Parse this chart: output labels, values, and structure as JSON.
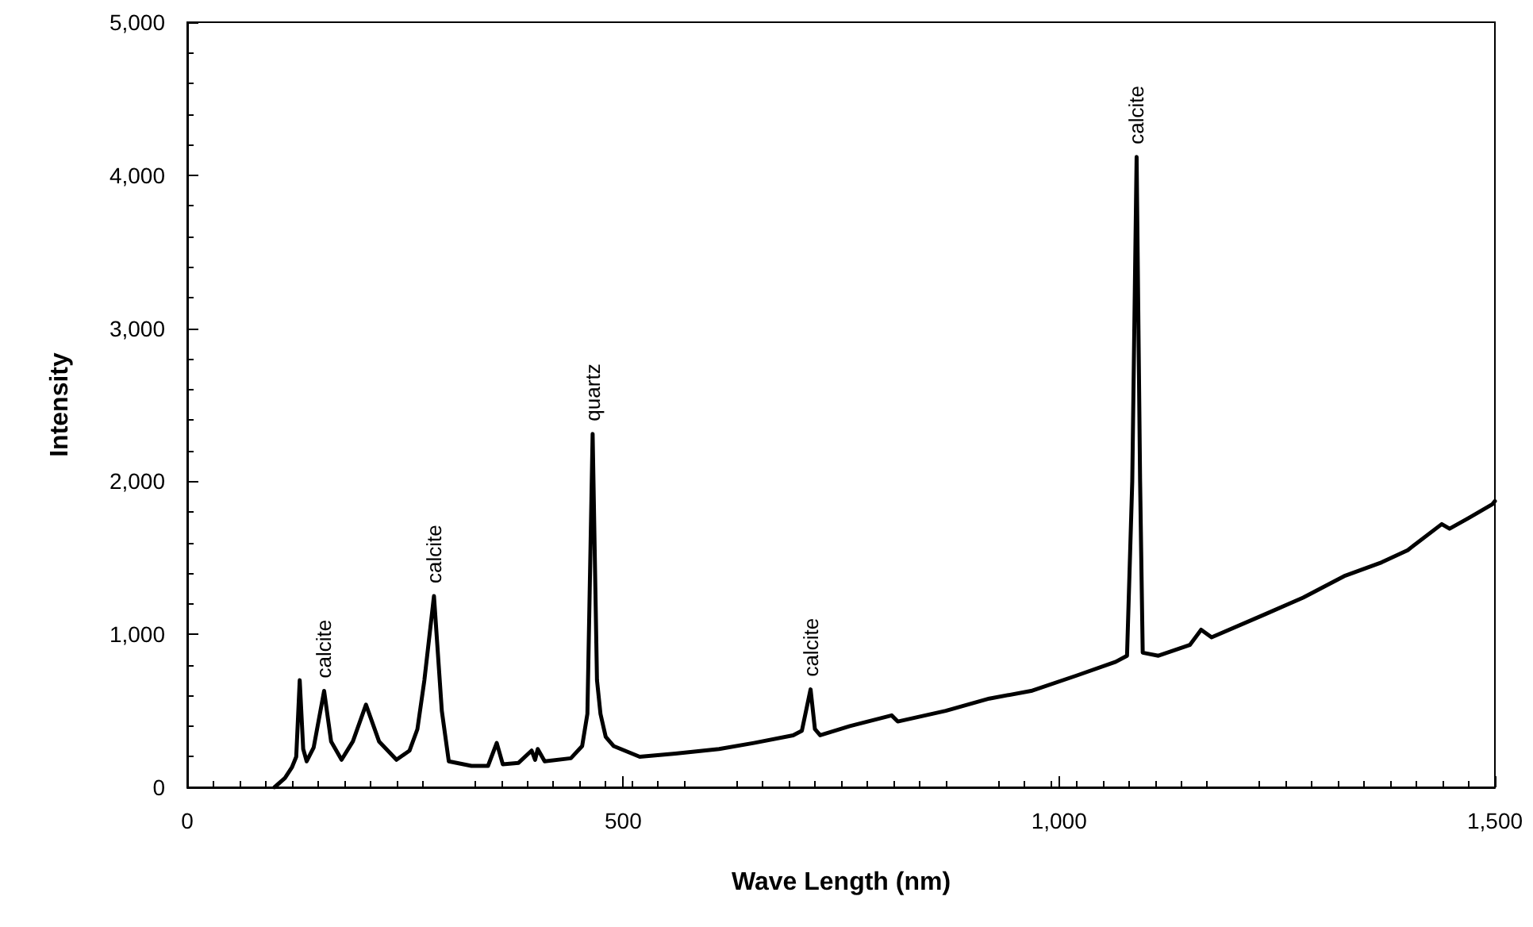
{
  "chart_data": {
    "type": "line",
    "xlabel": "Wave Length (nm)",
    "ylabel": "Intensity",
    "xlim": [
      0,
      1500
    ],
    "xticks": [
      0,
      500,
      {
        "value": 1000,
        "label": "1,000"
      },
      {
        "value": 1500,
        "label": "1,500"
      }
    ],
    "ylim": [
      0,
      5000
    ],
    "yticks": [
      0,
      {
        "value": 1000,
        "label": "1,000"
      },
      {
        "value": 2000,
        "label": "2,000"
      },
      {
        "value": 3000,
        "label": "3,000"
      },
      {
        "value": 4000,
        "label": "4,000"
      },
      {
        "value": 5000,
        "label": "5,000"
      }
    ],
    "grid": false,
    "marker": "none",
    "line_style": "solid",
    "series": [
      {
        "color": "#000000",
        "x": [
          100,
          112,
          120,
          125,
          129,
          133,
          137,
          145,
          157,
          165,
          177,
          190,
          205,
          220,
          240,
          255,
          264,
          272,
          283,
          292,
          300,
          326,
          345,
          355,
          362,
          380,
          395,
          399,
          402,
          410,
          440,
          453,
          459,
          465,
          470,
          474,
          480,
          489,
          519,
          560,
          610,
          650,
          695,
          705,
          715,
          720,
          726,
          760,
          801,
          808,
          815,
          870,
          920,
          968,
          1020,
          1065,
          1078,
          1084,
          1089,
          1093,
          1096,
          1114,
          1150,
          1163,
          1175,
          1236,
          1280,
          1327,
          1370,
          1400,
          1439,
          1448,
          1470,
          1497,
          1500
        ],
        "values": [
          0,
          60,
          130,
          200,
          700,
          250,
          170,
          260,
          630,
          300,
          180,
          300,
          540,
          300,
          180,
          240,
          380,
          700,
          1250,
          500,
          170,
          140,
          140,
          290,
          150,
          160,
          240,
          180,
          250,
          170,
          190,
          270,
          480,
          2310,
          700,
          480,
          330,
          270,
          200,
          220,
          250,
          290,
          340,
          370,
          640,
          380,
          340,
          400,
          460,
          470,
          430,
          500,
          580,
          630,
          730,
          820,
          860,
          2000,
          4120,
          2000,
          880,
          860,
          930,
          1030,
          980,
          1130,
          1240,
          1380,
          1470,
          1550,
          1720,
          1690,
          1760,
          1850,
          1870
        ]
      }
    ],
    "annotations": [
      {
        "text": "calcite",
        "x": 157,
        "y": 630
      },
      {
        "text": "calcite",
        "x": 283,
        "y": 1250
      },
      {
        "text": "quartz",
        "x": 465,
        "y": 2310
      },
      {
        "text": "calcite",
        "x": 715,
        "y": 640
      },
      {
        "text": "calcite",
        "x": 1089,
        "y": 4120
      }
    ]
  }
}
